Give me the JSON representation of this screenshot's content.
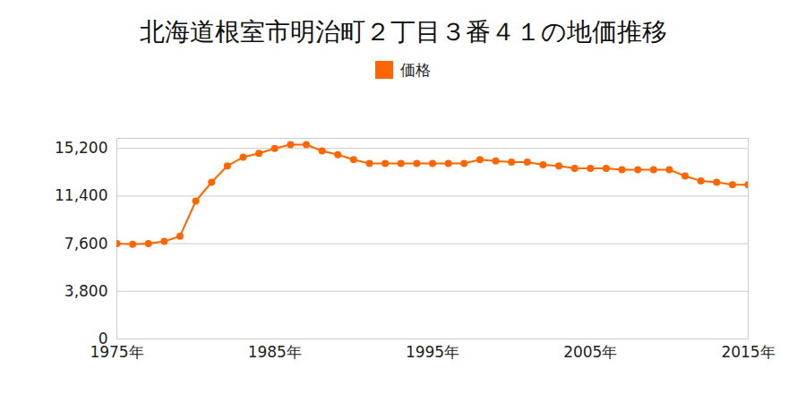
{
  "chart_data": {
    "type": "line",
    "title": "北海道根室市明治町２丁目３番４１の地価推移",
    "x": [
      1975,
      1976,
      1977,
      1978,
      1979,
      1980,
      1981,
      1982,
      1983,
      1984,
      1985,
      1986,
      1987,
      1988,
      1989,
      1990,
      1991,
      1992,
      1993,
      1994,
      1995,
      1996,
      1997,
      1998,
      1999,
      2000,
      2001,
      2002,
      2003,
      2004,
      2005,
      2006,
      2007,
      2008,
      2009,
      2010,
      2011,
      2012,
      2013,
      2014,
      2015
    ],
    "series": [
      {
        "name": "価格",
        "color": "#ff6600",
        "marker": "circle",
        "values": [
          7600,
          7560,
          7600,
          7780,
          8200,
          11000,
          12500,
          13800,
          14500,
          14800,
          15200,
          15500,
          15500,
          15000,
          14700,
          14300,
          14000,
          14000,
          14000,
          14000,
          14000,
          14000,
          14000,
          14300,
          14200,
          14100,
          14100,
          13900,
          13800,
          13600,
          13600,
          13600,
          13500,
          13500,
          13500,
          13500,
          13000,
          12600,
          12500,
          12300,
          12300
        ]
      }
    ],
    "xlim": [
      1975,
      2015
    ],
    "xticks": [
      {
        "value": 1975,
        "label": "1975年"
      },
      {
        "value": 1985,
        "label": "1985年"
      },
      {
        "value": 1995,
        "label": "1995年"
      },
      {
        "value": 2005,
        "label": "2005年"
      },
      {
        "value": 2015,
        "label": "2015年"
      }
    ],
    "ylim": [
      0,
      16000
    ],
    "yticks": [
      0,
      {
        "value": 3800,
        "label": "3,800"
      },
      {
        "value": 7600,
        "label": "7,600"
      },
      {
        "value": 11400,
        "label": "11,400"
      },
      {
        "value": 15200,
        "label": "15,200"
      }
    ],
    "grid": true,
    "legend": "top"
  }
}
